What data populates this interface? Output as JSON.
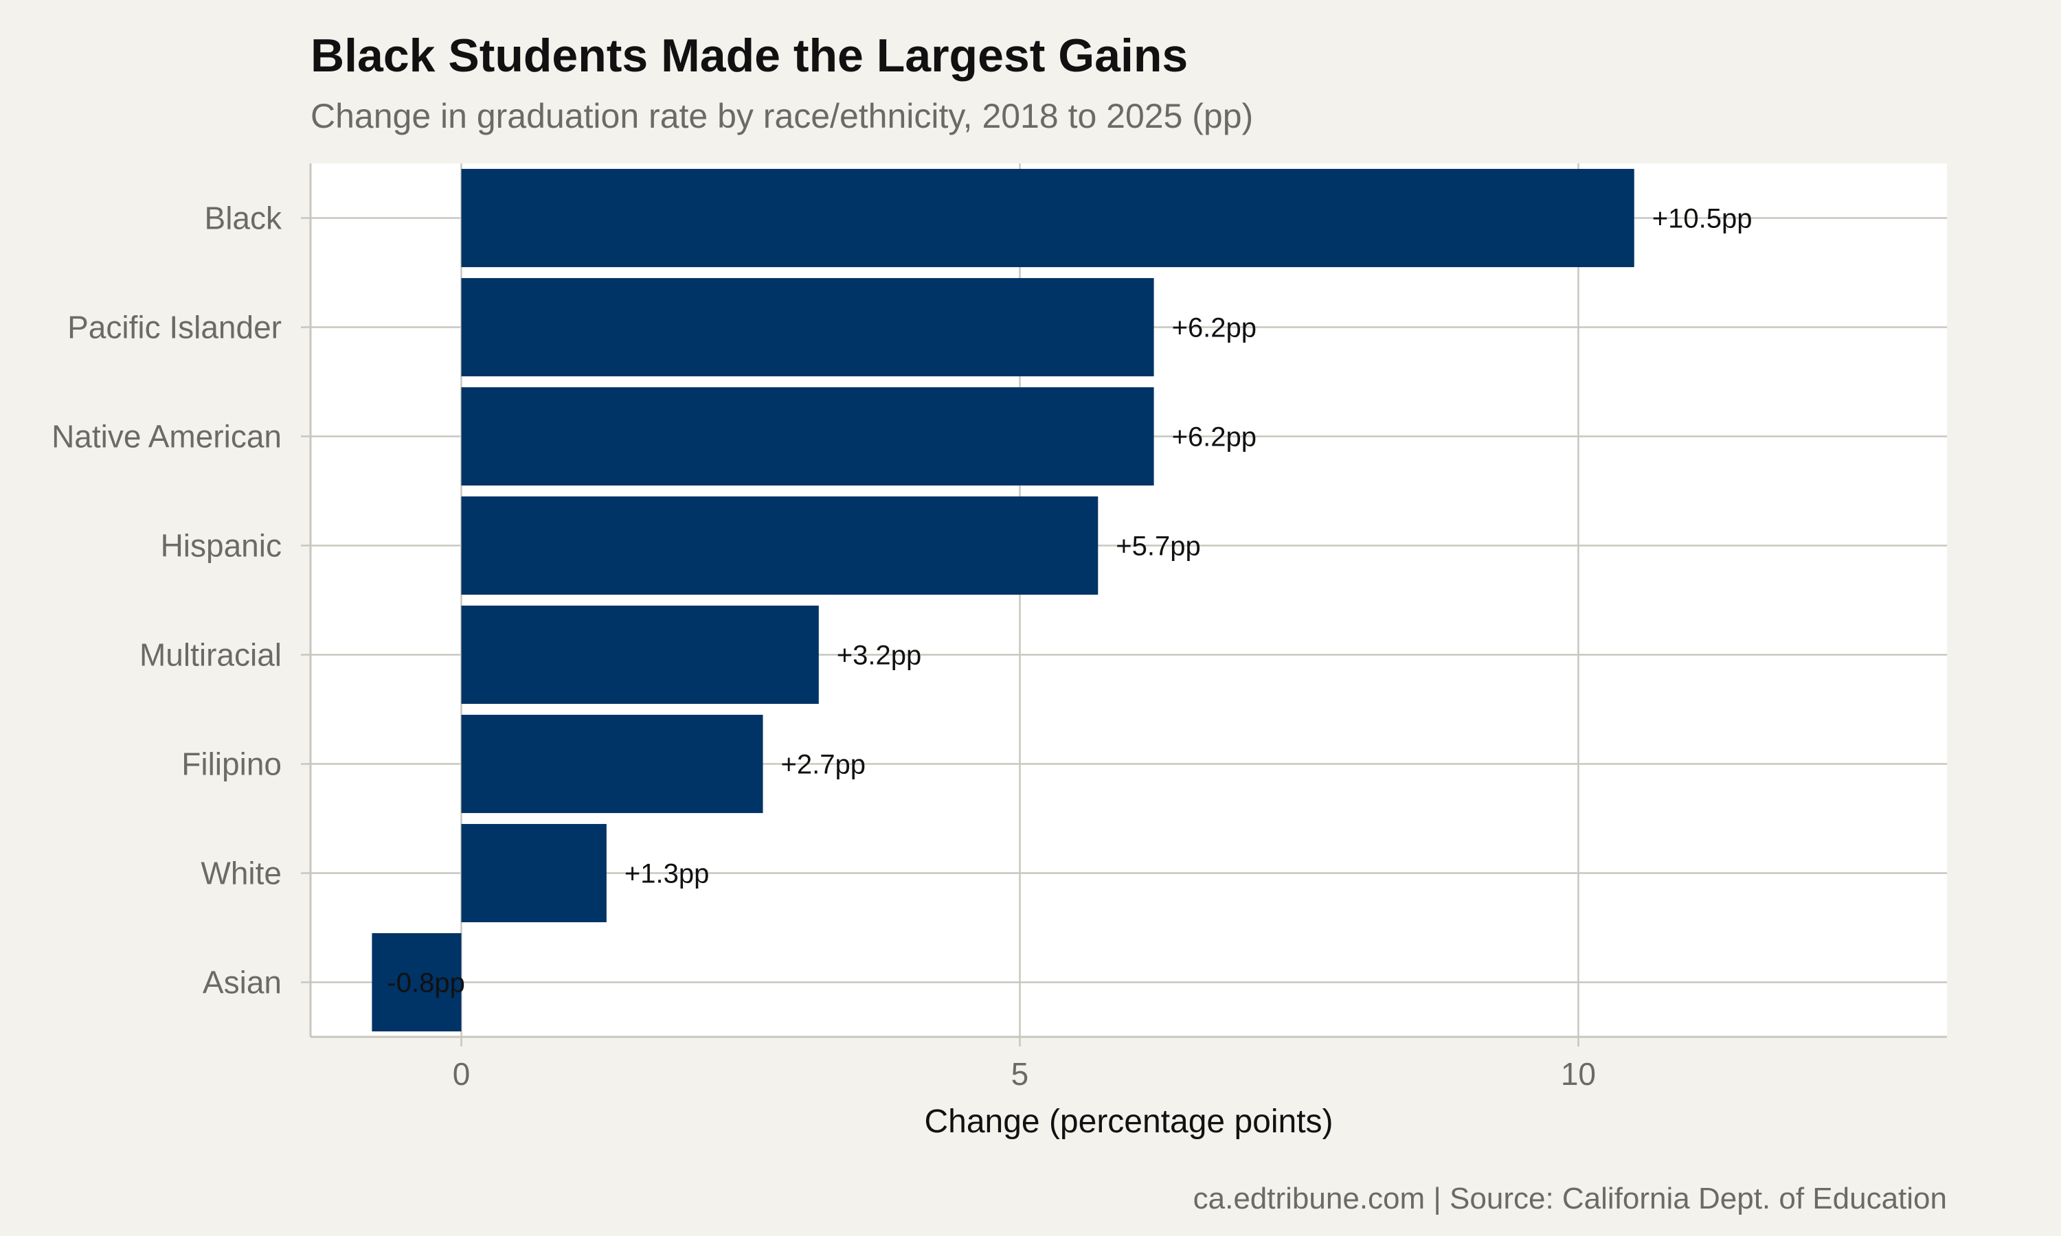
{
  "chart_data": {
    "type": "bar",
    "orientation": "horizontal",
    "title": "Black Students Made the Largest Gains",
    "subtitle": "Change in graduation rate by race/ethnicity, 2018 to 2025 (pp)",
    "xlabel": "Change (percentage points)",
    "ylabel": "",
    "caption": "ca.edtribune.com | Source: California Dept. of Education",
    "categories": [
      "Black",
      "Pacific Islander",
      "Native American",
      "Hispanic",
      "Multiracial",
      "Filipino",
      "White",
      "Asian"
    ],
    "values": [
      10.5,
      6.2,
      6.2,
      5.7,
      3.2,
      2.7,
      1.3,
      -0.8
    ],
    "data_labels": [
      "+10.5pp",
      "+6.2pp",
      "+6.2pp",
      "+5.7pp",
      "+3.2pp",
      "+2.7pp",
      "+1.3pp",
      "-0.8pp"
    ],
    "xticks": [
      0,
      5,
      10
    ],
    "xlim": [
      -1.35,
      13.3
    ],
    "grid": true,
    "legend": "none",
    "colors": {
      "bar": "#003366",
      "page_background": "#f4f2ed",
      "panel_background": "#ffffff",
      "grid": "#c8c7be",
      "axis_text": "#6b6b66",
      "title_text": "#111111",
      "label_text": "#111111"
    }
  }
}
